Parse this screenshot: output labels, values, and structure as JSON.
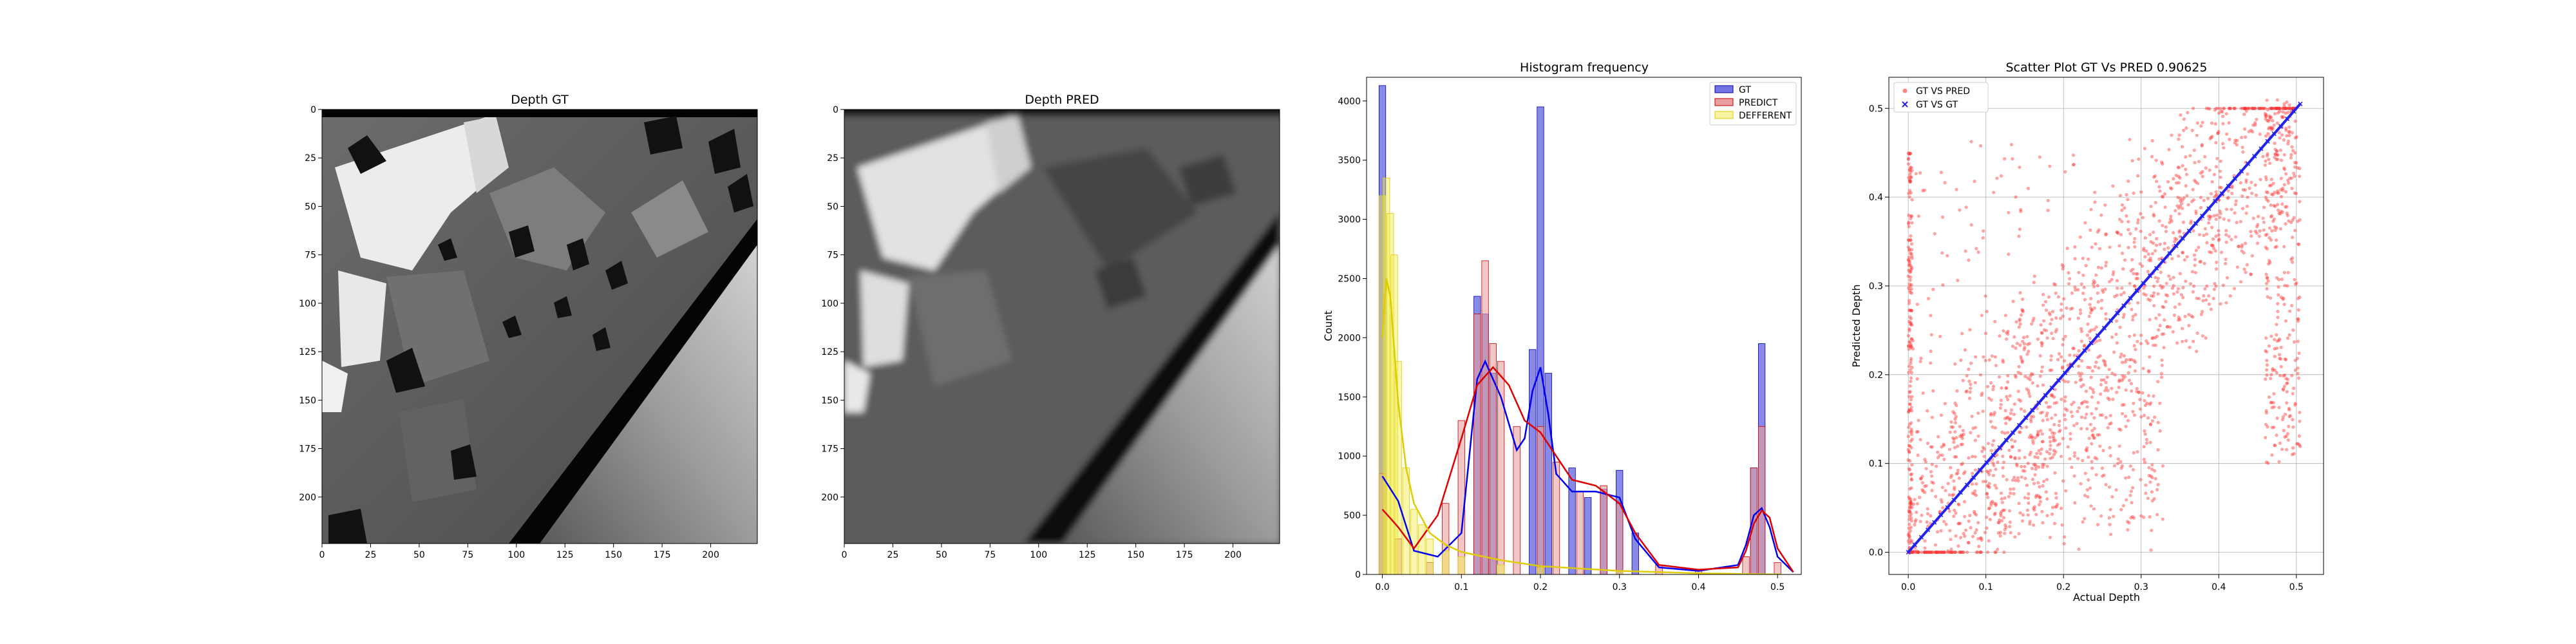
{
  "figure": {
    "panels": [
      {
        "title": "Depth GT"
      },
      {
        "title": "Depth PRED"
      },
      {
        "title": "Histogram frequency"
      },
      {
        "title": "Scatter Plot GT Vs PRED 0.90625"
      }
    ]
  },
  "chart_data": [
    {
      "type": "heatmap",
      "title": "Depth GT",
      "colormap": "gray",
      "x_ticks": [
        0,
        25,
        50,
        75,
        100,
        125,
        150,
        175,
        200
      ],
      "y_ticks": [
        0,
        25,
        50,
        75,
        100,
        125,
        150,
        175,
        200
      ],
      "xlim": [
        0,
        224
      ],
      "ylim": [
        0,
        224
      ],
      "grid": false
    },
    {
      "type": "heatmap",
      "title": "Depth PRED",
      "colormap": "gray",
      "x_ticks": [
        0,
        25,
        50,
        75,
        100,
        125,
        150,
        175,
        200
      ],
      "y_ticks": [
        0,
        25,
        50,
        75,
        100,
        125,
        150,
        175,
        200
      ],
      "xlim": [
        0,
        224
      ],
      "ylim": [
        0,
        224
      ],
      "grid": false
    },
    {
      "type": "bar",
      "title": "Histogram frequency",
      "xlabel": "",
      "ylabel": "Count",
      "xlim": [
        -0.02,
        0.53
      ],
      "ylim": [
        0,
        4200
      ],
      "x_ticks": [
        "0.0",
        "0.1",
        "0.2",
        "0.3",
        "0.4",
        "0.5"
      ],
      "y_ticks": [
        0,
        500,
        1000,
        1500,
        2000,
        2500,
        3000,
        3500,
        4000
      ],
      "legend_position": "top-right",
      "grid": false,
      "series": [
        {
          "name": "GT",
          "color": "#3b3bd6",
          "x": [
            0.0,
            0.12,
            0.13,
            0.14,
            0.19,
            0.2,
            0.21,
            0.24,
            0.26,
            0.28,
            0.3,
            0.32,
            0.47,
            0.48
          ],
          "values": [
            4130,
            2350,
            2200,
            1700,
            1900,
            3950,
            1700,
            900,
            650,
            720,
            880,
            350,
            900,
            1950
          ]
        },
        {
          "name": "PREDICT",
          "color": "#e8a0a0",
          "edge": "#cc0000",
          "x": [
            0.0,
            0.02,
            0.06,
            0.08,
            0.1,
            0.12,
            0.13,
            0.14,
            0.15,
            0.17,
            0.2,
            0.22,
            0.25,
            0.28,
            0.3,
            0.35,
            0.4,
            0.46,
            0.47,
            0.48,
            0.5
          ],
          "values": [
            850,
            300,
            100,
            600,
            1300,
            2200,
            2650,
            1950,
            1800,
            1250,
            1250,
            950,
            700,
            750,
            600,
            80,
            40,
            150,
            900,
            1250,
            100
          ]
        },
        {
          "name": "DEFFERENT",
          "color": "#f2ee4a",
          "x": [
            0.0,
            0.005,
            0.01,
            0.015,
            0.02,
            0.03,
            0.04,
            0.05,
            0.06,
            0.08,
            0.1,
            0.15,
            0.2,
            0.3,
            0.4,
            0.5
          ],
          "values": [
            3200,
            3350,
            3050,
            2700,
            1800,
            900,
            550,
            420,
            300,
            200,
            150,
            80,
            60,
            30,
            10,
            5
          ]
        }
      ],
      "kde": [
        {
          "name": "GT",
          "color": "#0000ee",
          "x": [
            0.0,
            0.02,
            0.04,
            0.07,
            0.1,
            0.12,
            0.13,
            0.15,
            0.17,
            0.18,
            0.19,
            0.2,
            0.21,
            0.22,
            0.24,
            0.27,
            0.3,
            0.32,
            0.35,
            0.4,
            0.45,
            0.46,
            0.47,
            0.48,
            0.49,
            0.5,
            0.52
          ],
          "values": [
            830,
            620,
            200,
            150,
            350,
            1650,
            1800,
            1500,
            1050,
            1150,
            1550,
            1750,
            1350,
            850,
            700,
            700,
            650,
            300,
            60,
            30,
            80,
            250,
            500,
            560,
            400,
            150,
            20
          ]
        },
        {
          "name": "PREDICT",
          "color": "#dd0000",
          "x": [
            0.0,
            0.02,
            0.04,
            0.07,
            0.1,
            0.12,
            0.14,
            0.16,
            0.18,
            0.2,
            0.22,
            0.24,
            0.27,
            0.3,
            0.32,
            0.35,
            0.4,
            0.45,
            0.46,
            0.47,
            0.48,
            0.49,
            0.5,
            0.52
          ],
          "values": [
            550,
            400,
            220,
            500,
            1150,
            1600,
            1750,
            1600,
            1300,
            1200,
            1000,
            800,
            750,
            600,
            350,
            80,
            40,
            60,
            200,
            430,
            540,
            480,
            220,
            20
          ]
        },
        {
          "name": "DEFFERENT",
          "color": "#ddcc00",
          "x": [
            0.0,
            0.005,
            0.01,
            0.015,
            0.02,
            0.03,
            0.04,
            0.06,
            0.08,
            0.1,
            0.15,
            0.2,
            0.3,
            0.4,
            0.5
          ],
          "values": [
            2000,
            2500,
            2350,
            1900,
            1450,
            900,
            600,
            350,
            250,
            190,
            120,
            70,
            30,
            10,
            0
          ]
        }
      ]
    },
    {
      "type": "scatter",
      "title": "Scatter Plot GT Vs PRED 0.90625",
      "xlabel": "Actual Depth",
      "ylabel": "Predicted Depth",
      "xlim": [
        -0.025,
        0.535
      ],
      "ylim": [
        -0.025,
        0.535
      ],
      "x_ticks": [
        "0.0",
        "0.1",
        "0.2",
        "0.3",
        "0.4",
        "0.5"
      ],
      "y_ticks": [
        "0.0",
        "0.1",
        "0.2",
        "0.3",
        "0.4",
        "0.5"
      ],
      "grid": true,
      "legend_position": "top-left",
      "series": [
        {
          "name": "GT VS PRED",
          "color": "#ff3333",
          "marker": "o"
        },
        {
          "name": "GT VS GT",
          "color": "#2222ee",
          "marker": "x",
          "x": [
            0.0,
            0.505
          ],
          "y": [
            0.0,
            0.505
          ]
        }
      ]
    }
  ]
}
